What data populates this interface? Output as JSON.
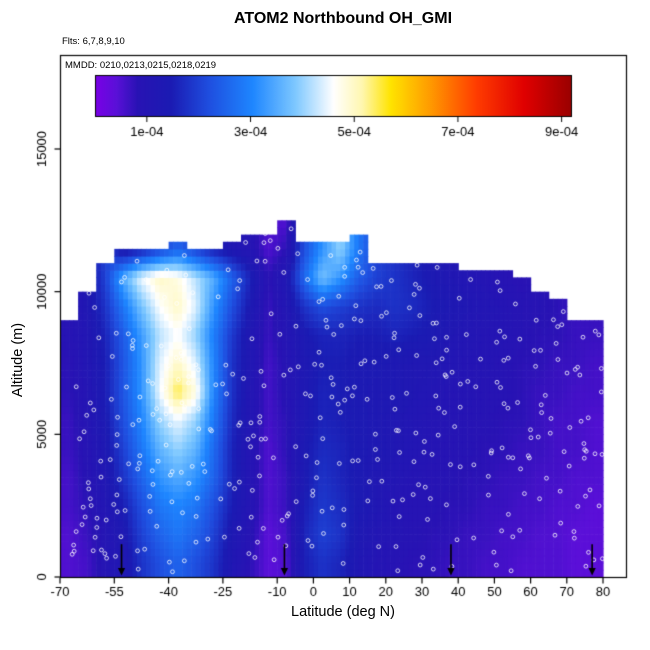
{
  "header": {
    "title": "ATOM2 Northbound OH_GMI",
    "flights_label": "Flts: 6,7,8,9,10",
    "dates_label": "MMDD: 0210,0213,0215,0218,0219"
  },
  "chart_data": {
    "type": "heatmap",
    "title": "ATOM2 Northbound OH_GMI",
    "xlabel": "Latitude (deg N)",
    "ylabel": "Altitude (m)",
    "xlim": [
      -70,
      86
    ],
    "ylim": [
      0,
      18300
    ],
    "x_tick_values": [
      -70,
      -55,
      -40,
      -25,
      -10,
      0,
      10,
      20,
      30,
      40,
      50,
      60,
      70,
      80
    ],
    "x_tick_labels": [
      "-70",
      "-55",
      "-40",
      "-25",
      "-10",
      "0",
      "10",
      "20",
      "30",
      "40",
      "50",
      "60",
      "70",
      "80"
    ],
    "y_tick_values": [
      0,
      5000,
      10000,
      15000
    ],
    "y_tick_labels": [
      "0",
      "5000",
      "10000",
      "15000"
    ],
    "grid": false,
    "variable": "OH_GMI",
    "colorbar": {
      "min": 0,
      "max": 0.00092,
      "tick_values": [
        0.0001,
        0.0003,
        0.0005,
        0.0007,
        0.0009
      ],
      "tick_labels": [
        "1e-04",
        "3e-04",
        "5e-04",
        "7e-04",
        "9e-04"
      ],
      "palette": [
        {
          "t": 0.0,
          "c": "#7a00e6"
        },
        {
          "t": 0.045,
          "c": "#5a10d8"
        },
        {
          "t": 0.09,
          "c": "#2813b4"
        },
        {
          "t": 0.16,
          "c": "#1b1bb3"
        },
        {
          "t": 0.24,
          "c": "#1f4fe0"
        },
        {
          "t": 0.33,
          "c": "#1e86ff"
        },
        {
          "t": 0.42,
          "c": "#7ec8ff"
        },
        {
          "t": 0.5,
          "c": "#ffffff"
        },
        {
          "t": 0.56,
          "c": "#fff7b0"
        },
        {
          "t": 0.62,
          "c": "#ffe400"
        },
        {
          "t": 0.7,
          "c": "#ff9d00"
        },
        {
          "t": 0.8,
          "c": "#ff3c00"
        },
        {
          "t": 0.9,
          "c": "#e00000"
        },
        {
          "t": 1.0,
          "c": "#990000"
        }
      ]
    },
    "grid_units": "value * 1e-4, rows bottom-to-top",
    "x_centers_deg": [
      -67.5,
      -62.5,
      -57.5,
      -52.5,
      -47.5,
      -42.5,
      -37.5,
      -32.5,
      -27.5,
      -22.5,
      -17.5,
      -12.5,
      -7.5,
      -2.5,
      2.5,
      7.5,
      12.5,
      17.5,
      22.5,
      27.5,
      32.5,
      37.5,
      42.5,
      47.5,
      52.5,
      57.5,
      62.5,
      67.5,
      72.5,
      77.5
    ],
    "y_centers_m": [
      500,
      1500,
      2500,
      3500,
      4500,
      5500,
      6500,
      7500,
      8500,
      9500,
      10500,
      11500,
      12500
    ],
    "column_top_km": [
      9.5,
      10.5,
      11.0,
      11.6,
      11.6,
      11.6,
      11.7,
      11.6,
      11.6,
      11.7,
      12.2,
      12.4,
      12.6,
      11.7,
      11.7,
      11.7,
      12.0,
      11.5,
      11.5,
      11.3,
      11.3,
      11.0,
      10.8,
      10.8,
      10.8,
      10.6,
      10.2,
      9.8,
      9.4,
      9.0
    ],
    "values_1e4": [
      [
        0.5,
        0.6,
        1.0,
        1.2,
        1.8,
        2.2,
        2.5,
        2.2,
        1.8,
        1.2,
        0.8,
        0.4,
        0.5,
        1.5,
        1.8,
        1.6,
        1.2,
        1.0,
        0.9,
        0.8,
        0.8,
        0.7,
        0.7,
        0.6,
        0.6,
        0.5,
        0.5,
        0.5,
        0.4,
        0.4
      ],
      [
        0.5,
        0.7,
        1.0,
        1.3,
        2.0,
        2.5,
        2.8,
        2.5,
        2.0,
        1.3,
        0.9,
        0.4,
        0.6,
        1.6,
        2.0,
        1.8,
        1.3,
        1.1,
        1.0,
        0.9,
        0.8,
        0.8,
        0.7,
        0.7,
        0.6,
        0.6,
        0.5,
        0.5,
        0.4,
        0.4
      ],
      [
        0.6,
        0.8,
        1.1,
        1.5,
        2.2,
        2.8,
        3.0,
        2.8,
        2.2,
        1.5,
        1.0,
        0.5,
        0.7,
        1.5,
        1.9,
        1.7,
        1.4,
        1.2,
        1.0,
        0.9,
        0.9,
        0.8,
        0.8,
        0.7,
        0.7,
        0.6,
        0.6,
        0.5,
        0.5,
        0.4
      ],
      [
        0.6,
        0.9,
        1.2,
        1.8,
        2.5,
        3.2,
        3.5,
        3.2,
        2.5,
        1.6,
        1.0,
        0.5,
        0.7,
        1.4,
        1.8,
        1.6,
        1.4,
        1.2,
        1.1,
        1.0,
        0.9,
        0.9,
        0.8,
        0.8,
        0.7,
        0.7,
        0.6,
        0.6,
        0.5,
        0.5
      ],
      [
        0.7,
        0.9,
        1.3,
        2.0,
        2.8,
        3.6,
        4.0,
        3.6,
        2.6,
        1.6,
        1.0,
        0.5,
        0.8,
        1.4,
        1.7,
        1.6,
        1.4,
        1.3,
        1.2,
        1.1,
        1.0,
        0.9,
        0.9,
        0.8,
        0.8,
        0.7,
        0.7,
        0.6,
        0.6,
        0.5
      ],
      [
        0.7,
        1.0,
        1.4,
        2.2,
        3.0,
        4.0,
        4.5,
        4.0,
        2.8,
        1.7,
        1.1,
        0.6,
        0.8,
        1.3,
        1.6,
        1.5,
        1.4,
        1.3,
        1.2,
        1.1,
        1.0,
        1.0,
        0.9,
        0.9,
        0.8,
        0.8,
        0.7,
        0.6,
        0.6,
        0.5
      ],
      [
        0.8,
        1.0,
        1.5,
        2.3,
        3.2,
        4.5,
        5.5,
        4.8,
        3.0,
        1.8,
        1.1,
        0.6,
        0.9,
        1.3,
        1.6,
        1.5,
        1.4,
        1.3,
        1.3,
        1.2,
        1.1,
        1.0,
        1.0,
        0.9,
        0.9,
        0.8,
        0.7,
        0.7,
        0.6,
        0.6
      ],
      [
        0.8,
        1.1,
        1.5,
        2.3,
        3.2,
        4.4,
        5.0,
        4.4,
        3.0,
        1.8,
        1.2,
        0.6,
        0.9,
        1.3,
        1.5,
        1.5,
        1.4,
        1.4,
        1.3,
        1.2,
        1.2,
        1.1,
        1.0,
        1.0,
        0.9,
        0.8,
        0.8,
        0.7,
        0.7,
        0.6
      ],
      [
        0.9,
        1.1,
        1.6,
        2.4,
        3.3,
        4.2,
        4.6,
        4.0,
        2.9,
        1.9,
        1.2,
        0.7,
        1.0,
        1.4,
        1.6,
        1.6,
        1.5,
        1.5,
        1.6,
        1.5,
        1.4,
        1.2,
        1.1,
        1.0,
        1.0,
        0.9,
        0.8,
        0.8,
        0.7,
        0.7
      ],
      [
        null,
        1.2,
        1.8,
        2.8,
        3.8,
        4.6,
        5.0,
        4.4,
        3.2,
        2.2,
        1.4,
        0.7,
        1.1,
        1.8,
        2.2,
        2.0,
        1.8,
        1.7,
        1.8,
        1.7,
        1.5,
        1.3,
        1.2,
        1.1,
        1.0,
        0.9,
        0.9,
        0.8,
        null,
        null
      ],
      [
        null,
        null,
        2.0,
        3.5,
        4.5,
        5.0,
        4.8,
        4.2,
        3.5,
        2.5,
        1.6,
        0.8,
        1.2,
        2.6,
        3.8,
        3.2,
        2.4,
        2.0,
        1.8,
        1.6,
        1.4,
        1.2,
        1.1,
        1.0,
        0.9,
        0.8,
        null,
        null,
        null,
        null
      ],
      [
        null,
        null,
        null,
        1.2,
        1.5,
        2.0,
        2.5,
        2.0,
        1.5,
        1.2,
        1.0,
        0.5,
        0.8,
        2.2,
        3.2,
        4.0,
        2.8,
        null,
        null,
        null,
        null,
        null,
        null,
        null,
        null,
        null,
        null,
        null,
        null,
        null
      ],
      [
        null,
        null,
        null,
        null,
        null,
        null,
        null,
        null,
        null,
        null,
        null,
        null,
        0.5,
        null,
        null,
        null,
        null,
        null,
        null,
        null,
        null,
        null,
        null,
        null,
        null,
        null,
        null,
        null,
        null,
        null
      ]
    ],
    "arrow_latitudes": [
      -53,
      -8,
      38,
      77
    ],
    "track_points": {
      "style": "open-white-circles",
      "approx_count": 400
    },
    "legend_position": "top-inside"
  }
}
